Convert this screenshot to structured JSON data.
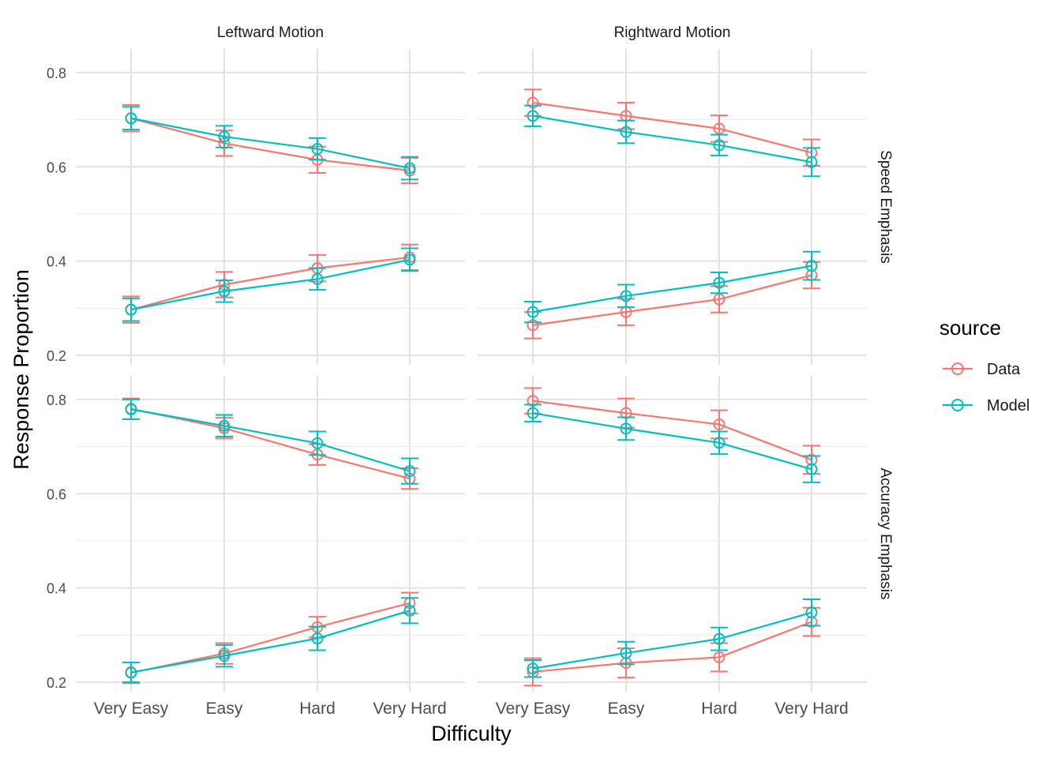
{
  "chart_data": {
    "type": "line",
    "xlabel": "Difficulty",
    "ylabel": "Response Proportion",
    "categories": [
      "Very Easy",
      "Easy",
      "Hard",
      "Very Hard"
    ],
    "ylim": [
      0.18,
      0.85
    ],
    "yticks": [
      0.2,
      0.4,
      0.6,
      0.8
    ],
    "ytick_labels": [
      "0.2",
      "0.4",
      "0.6",
      "0.8"
    ],
    "grid": true,
    "legend": {
      "title": "source",
      "position": "right",
      "entries": [
        "Data",
        "Model"
      ]
    },
    "colors": {
      "Data": "#F8766D",
      "Model": "#00BFC4"
    },
    "col_labels": [
      "Leftward Motion",
      "Rightward Motion"
    ],
    "row_labels": [
      "Speed Emphasis",
      "Accuracy Emphasis"
    ],
    "panels": [
      {
        "col": 0,
        "row": 0,
        "series": [
          {
            "name": "Data",
            "lines": [
              {
                "y": [
                  0.703,
                  0.65,
                  0.615,
                  0.592
                ],
                "lo": [
                  0.675,
                  0.623,
                  0.587,
                  0.565
                ],
                "hi": [
                  0.731,
                  0.677,
                  0.643,
                  0.619
                ]
              },
              {
                "y": [
                  0.297,
                  0.35,
                  0.385,
                  0.408
                ],
                "lo": [
                  0.269,
                  0.323,
                  0.357,
                  0.381
                ],
                "hi": [
                  0.325,
                  0.377,
                  0.413,
                  0.435
                ]
              }
            ]
          },
          {
            "name": "Model",
            "lines": [
              {
                "y": [
                  0.703,
                  0.664,
                  0.638,
                  0.597
                ],
                "lo": [
                  0.679,
                  0.641,
                  0.615,
                  0.573
                ],
                "hi": [
                  0.727,
                  0.687,
                  0.661,
                  0.621
                ]
              },
              {
                "y": [
                  0.297,
                  0.336,
                  0.362,
                  0.403
                ],
                "lo": [
                  0.273,
                  0.313,
                  0.339,
                  0.379
                ],
                "hi": [
                  0.321,
                  0.359,
                  0.385,
                  0.427
                ]
              }
            ]
          }
        ]
      },
      {
        "col": 1,
        "row": 0,
        "series": [
          {
            "name": "Data",
            "lines": [
              {
                "y": [
                  0.736,
                  0.708,
                  0.681,
                  0.63
                ],
                "lo": [
                  0.708,
                  0.68,
                  0.653,
                  0.602
                ],
                "hi": [
                  0.764,
                  0.736,
                  0.709,
                  0.658
                ]
              },
              {
                "y": [
                  0.264,
                  0.292,
                  0.319,
                  0.37
                ],
                "lo": [
                  0.236,
                  0.264,
                  0.291,
                  0.342
                ],
                "hi": [
                  0.292,
                  0.32,
                  0.347,
                  0.398
                ]
              }
            ]
          },
          {
            "name": "Model",
            "lines": [
              {
                "y": [
                  0.708,
                  0.674,
                  0.646,
                  0.61
                ],
                "lo": [
                  0.686,
                  0.65,
                  0.624,
                  0.58
                ],
                "hi": [
                  0.73,
                  0.698,
                  0.668,
                  0.64
                ]
              },
              {
                "y": [
                  0.292,
                  0.326,
                  0.354,
                  0.39
                ],
                "lo": [
                  0.27,
                  0.302,
                  0.332,
                  0.36
                ],
                "hi": [
                  0.314,
                  0.35,
                  0.376,
                  0.42
                ]
              }
            ]
          }
        ]
      },
      {
        "col": 0,
        "row": 1,
        "series": [
          {
            "name": "Data",
            "lines": [
              {
                "y": [
                  0.78,
                  0.739,
                  0.683,
                  0.632
                ],
                "lo": [
                  0.758,
                  0.717,
                  0.661,
                  0.61
                ],
                "hi": [
                  0.802,
                  0.761,
                  0.705,
                  0.654
                ]
              },
              {
                "y": [
                  0.22,
                  0.261,
                  0.317,
                  0.368
                ],
                "lo": [
                  0.198,
                  0.239,
                  0.295,
                  0.346
                ],
                "hi": [
                  0.242,
                  0.283,
                  0.339,
                  0.39
                ]
              }
            ]
          },
          {
            "name": "Model",
            "lines": [
              {
                "y": [
                  0.779,
                  0.744,
                  0.707,
                  0.648
                ],
                "lo": [
                  0.758,
                  0.721,
                  0.682,
                  0.621
                ],
                "hi": [
                  0.8,
                  0.767,
                  0.732,
                  0.675
                ]
              },
              {
                "y": [
                  0.221,
                  0.256,
                  0.293,
                  0.352
                ],
                "lo": [
                  0.2,
                  0.233,
                  0.268,
                  0.325
                ],
                "hi": [
                  0.242,
                  0.279,
                  0.318,
                  0.379
                ]
              }
            ]
          }
        ]
      },
      {
        "col": 1,
        "row": 1,
        "series": [
          {
            "name": "Data",
            "lines": [
              {
                "y": [
                  0.797,
                  0.771,
                  0.747,
                  0.672
                ],
                "lo": [
                  0.77,
                  0.74,
                  0.717,
                  0.642
                ],
                "hi": [
                  0.824,
                  0.802,
                  0.777,
                  0.702
                ]
              },
              {
                "y": [
                  0.222,
                  0.241,
                  0.253,
                  0.328
                ],
                "lo": [
                  0.193,
                  0.21,
                  0.223,
                  0.298
                ],
                "hi": [
                  0.251,
                  0.272,
                  0.283,
                  0.358
                ]
              }
            ]
          },
          {
            "name": "Model",
            "lines": [
              {
                "y": [
                  0.771,
                  0.738,
                  0.708,
                  0.652
                ],
                "lo": [
                  0.753,
                  0.714,
                  0.684,
                  0.624
                ],
                "hi": [
                  0.789,
                  0.762,
                  0.732,
                  0.68
                ]
              },
              {
                "y": [
                  0.229,
                  0.262,
                  0.292,
                  0.348
                ],
                "lo": [
                  0.211,
                  0.238,
                  0.268,
                  0.32
                ],
                "hi": [
                  0.247,
                  0.286,
                  0.316,
                  0.376
                ]
              }
            ]
          }
        ]
      }
    ]
  }
}
